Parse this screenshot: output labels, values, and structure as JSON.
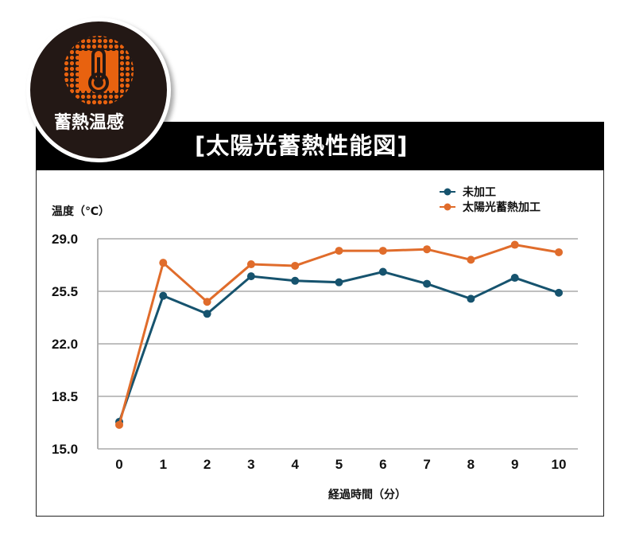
{
  "badge": {
    "label": "蓄熱温感",
    "icon": "thermometer-icon",
    "bg_color": "#231815",
    "accent_color": "#e8620f"
  },
  "chart_data": {
    "type": "line",
    "title": "[太陽光蓄熱性能図]",
    "xlabel": "経過時間（分）",
    "ylabel": "温度（℃）",
    "categories": [
      "0",
      "1",
      "2",
      "3",
      "4",
      "5",
      "6",
      "7",
      "8",
      "9",
      "10"
    ],
    "y_ticks": [
      "15.0",
      "18.5",
      "22.0",
      "25.5",
      "29.0"
    ],
    "ylim": [
      15.0,
      29.0
    ],
    "grid": "horizontal",
    "legend_position": "top-right",
    "series": [
      {
        "name": "未加工",
        "color": "#16536e",
        "values": [
          16.8,
          25.2,
          24.0,
          26.5,
          26.2,
          26.1,
          26.8,
          26.0,
          25.0,
          26.4,
          25.4
        ]
      },
      {
        "name": "太陽光蓄熱加工",
        "color": "#e06c2b",
        "values": [
          16.6,
          27.4,
          24.8,
          27.3,
          27.2,
          28.2,
          28.2,
          28.3,
          27.6,
          28.6,
          28.1
        ]
      }
    ]
  }
}
